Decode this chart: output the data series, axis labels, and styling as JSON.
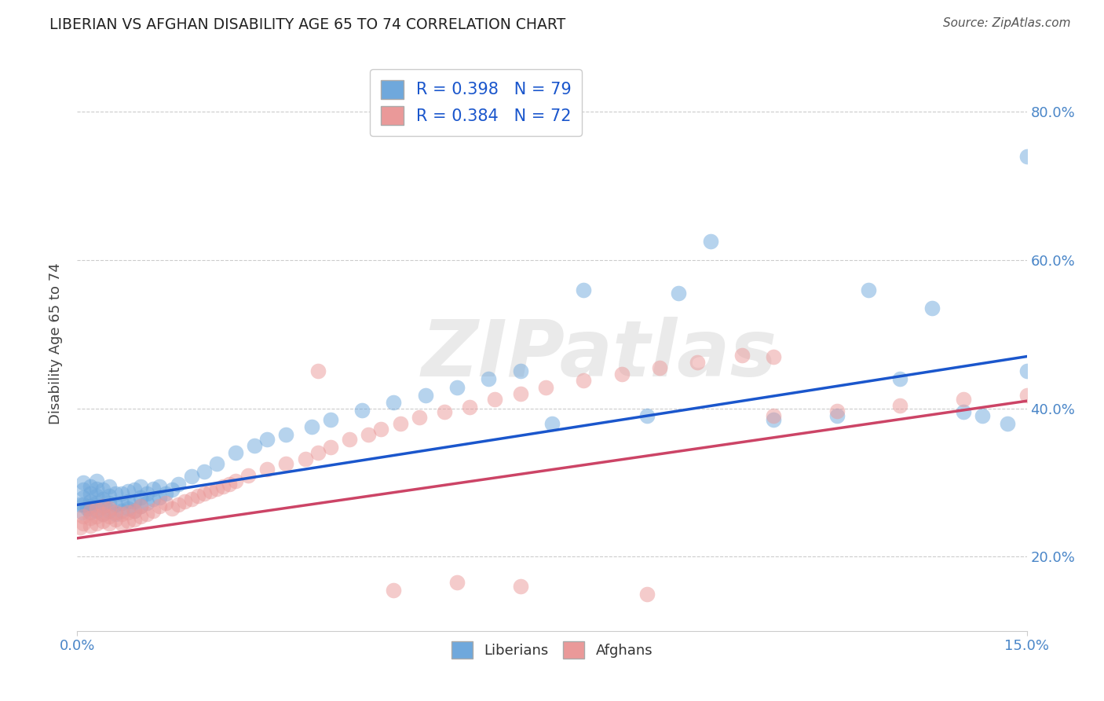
{
  "title": "LIBERIAN VS AFGHAN DISABILITY AGE 65 TO 74 CORRELATION CHART",
  "source": "Source: ZipAtlas.com",
  "ylabel": "Disability Age 65 to 74",
  "xlim": [
    0.0,
    0.15
  ],
  "ylim": [
    0.1,
    0.875
  ],
  "yticks": [
    0.2,
    0.4,
    0.6,
    0.8
  ],
  "ytick_labels": [
    "20.0%",
    "40.0%",
    "60.0%",
    "80.0%"
  ],
  "liberian_color": "#6fa8dc",
  "afghan_color": "#ea9999",
  "liberian_line_color": "#1a56cc",
  "afghan_line_color": "#cc4466",
  "R_liberian": 0.398,
  "N_liberian": 79,
  "R_afghan": 0.384,
  "N_afghan": 72,
  "watermark": "ZIPatlas",
  "liberian_x": [
    0.0005,
    0.0008,
    0.001,
    0.001,
    0.001,
    0.001,
    0.0015,
    0.002,
    0.002,
    0.002,
    0.002,
    0.002,
    0.003,
    0.003,
    0.003,
    0.003,
    0.003,
    0.004,
    0.004,
    0.004,
    0.004,
    0.005,
    0.005,
    0.005,
    0.005,
    0.006,
    0.006,
    0.006,
    0.007,
    0.007,
    0.007,
    0.008,
    0.008,
    0.008,
    0.009,
    0.009,
    0.009,
    0.01,
    0.01,
    0.01,
    0.011,
    0.011,
    0.012,
    0.012,
    0.013,
    0.013,
    0.014,
    0.015,
    0.016,
    0.018,
    0.02,
    0.022,
    0.025,
    0.028,
    0.03,
    0.033,
    0.037,
    0.04,
    0.045,
    0.05,
    0.055,
    0.06,
    0.065,
    0.07,
    0.075,
    0.08,
    0.09,
    0.095,
    0.1,
    0.11,
    0.12,
    0.125,
    0.13,
    0.135,
    0.14,
    0.143,
    0.147,
    0.15,
    0.15
  ],
  "liberian_y": [
    0.27,
    0.26,
    0.27,
    0.28,
    0.29,
    0.3,
    0.265,
    0.26,
    0.268,
    0.275,
    0.285,
    0.295,
    0.262,
    0.272,
    0.282,
    0.292,
    0.302,
    0.258,
    0.268,
    0.278,
    0.29,
    0.262,
    0.272,
    0.282,
    0.295,
    0.258,
    0.27,
    0.285,
    0.262,
    0.272,
    0.285,
    0.265,
    0.275,
    0.288,
    0.262,
    0.275,
    0.29,
    0.268,
    0.28,
    0.295,
    0.272,
    0.285,
    0.278,
    0.292,
    0.28,
    0.295,
    0.285,
    0.29,
    0.298,
    0.308,
    0.315,
    0.325,
    0.34,
    0.35,
    0.358,
    0.365,
    0.375,
    0.385,
    0.398,
    0.408,
    0.418,
    0.428,
    0.44,
    0.45,
    0.38,
    0.56,
    0.39,
    0.555,
    0.625,
    0.385,
    0.39,
    0.56,
    0.44,
    0.535,
    0.395,
    0.39,
    0.38,
    0.74,
    0.45
  ],
  "afghan_x": [
    0.0005,
    0.001,
    0.001,
    0.002,
    0.002,
    0.002,
    0.003,
    0.003,
    0.003,
    0.004,
    0.004,
    0.004,
    0.005,
    0.005,
    0.005,
    0.006,
    0.006,
    0.007,
    0.007,
    0.008,
    0.008,
    0.009,
    0.009,
    0.01,
    0.01,
    0.011,
    0.012,
    0.013,
    0.014,
    0.015,
    0.016,
    0.017,
    0.018,
    0.019,
    0.02,
    0.021,
    0.022,
    0.023,
    0.024,
    0.025,
    0.027,
    0.03,
    0.033,
    0.036,
    0.038,
    0.04,
    0.043,
    0.046,
    0.048,
    0.051,
    0.054,
    0.058,
    0.062,
    0.066,
    0.07,
    0.074,
    0.08,
    0.086,
    0.092,
    0.098,
    0.105,
    0.11,
    0.12,
    0.13,
    0.14,
    0.15,
    0.038,
    0.05,
    0.06,
    0.07,
    0.09,
    0.11
  ],
  "afghan_y": [
    0.24,
    0.245,
    0.255,
    0.242,
    0.252,
    0.262,
    0.245,
    0.255,
    0.265,
    0.248,
    0.258,
    0.268,
    0.245,
    0.255,
    0.265,
    0.25,
    0.26,
    0.245,
    0.258,
    0.248,
    0.26,
    0.25,
    0.262,
    0.255,
    0.268,
    0.258,
    0.262,
    0.268,
    0.272,
    0.265,
    0.27,
    0.275,
    0.278,
    0.282,
    0.285,
    0.288,
    0.292,
    0.295,
    0.298,
    0.302,
    0.31,
    0.318,
    0.325,
    0.332,
    0.34,
    0.348,
    0.358,
    0.365,
    0.372,
    0.38,
    0.388,
    0.395,
    0.402,
    0.412,
    0.42,
    0.428,
    0.438,
    0.446,
    0.455,
    0.462,
    0.472,
    0.39,
    0.396,
    0.404,
    0.412,
    0.418,
    0.45,
    0.155,
    0.165,
    0.16,
    0.15,
    0.47
  ]
}
